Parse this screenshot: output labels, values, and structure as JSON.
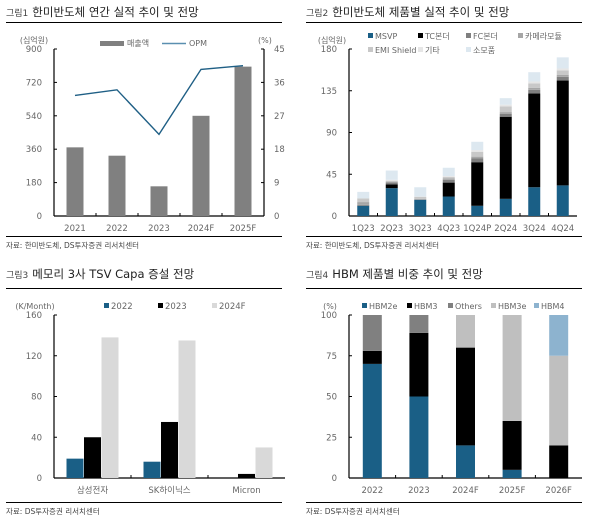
{
  "chart_data": [
    {
      "id": "fig1",
      "type": "bar+line",
      "fig_label": "그림1",
      "title": "한미반도체 연간 실적 추이 및 전망",
      "ylabel": "(십억원)",
      "y2label": "(%)",
      "categories": [
        "2021",
        "2022",
        "2023",
        "2024F",
        "2025F"
      ],
      "ylim": [
        0,
        900
      ],
      "yticks": [
        "0",
        "180",
        "360",
        "540",
        "720",
        "900"
      ],
      "y2lim": [
        0,
        45
      ],
      "y2ticks": [
        "0",
        "9",
        "18",
        "27",
        "36",
        "45"
      ],
      "series": [
        {
          "name": "매출액",
          "type": "bar",
          "axis": "left",
          "color": "#808080",
          "values": [
            370,
            325,
            160,
            540,
            805
          ]
        },
        {
          "name": "OPM",
          "type": "line",
          "axis": "right",
          "color": "#1f5f85",
          "values": [
            32.5,
            34,
            22,
            39.5,
            40.5
          ]
        }
      ],
      "legend": "top",
      "source": "자료: 한미반도체, DS투자증권 리서치센터"
    },
    {
      "id": "fig2",
      "type": "stacked-bar",
      "fig_label": "그림2",
      "title": "한미반도체 제품별 실적 추이 및 전망",
      "ylabel": "(십억원)",
      "categories": [
        "1Q23",
        "2Q23",
        "3Q23",
        "4Q23",
        "1Q24P",
        "2Q24",
        "3Q24",
        "4Q24"
      ],
      "ylim": [
        0,
        180
      ],
      "yticks": [
        "0",
        "45",
        "90",
        "135",
        "180"
      ],
      "series": [
        {
          "name": "MSVP",
          "color": "#1a5f86",
          "values": [
            11,
            30,
            17.5,
            21,
            11,
            18.5,
            31,
            33
          ]
        },
        {
          "name": "TC본더",
          "color": "#000000",
          "values": [
            0,
            4,
            0,
            15,
            47,
            88.5,
            101,
            113
          ]
        },
        {
          "name": "FC본더",
          "color": "#7f7f7f",
          "values": [
            1,
            2,
            0,
            3,
            4,
            3,
            4,
            4
          ]
        },
        {
          "name": "카메라모듈",
          "color": "#a6a6a6",
          "values": [
            3,
            1,
            1,
            1.5,
            2,
            2,
            2,
            2
          ]
        },
        {
          "name": "EMI Shield",
          "color": "#c8c8c8",
          "values": [
            4,
            1,
            2,
            1.5,
            5,
            6,
            5,
            5
          ]
        },
        {
          "name": "기타",
          "color": "#e6e6e6",
          "values": [
            0,
            1,
            0.5,
            1,
            2,
            2,
            2,
            2
          ]
        },
        {
          "name": "소모품",
          "color": "#dde8f0",
          "values": [
            7,
            10,
            10,
            9,
            9,
            7,
            10,
            12
          ]
        }
      ],
      "legend": "top",
      "source": "자료: 한미반도체, DS투자증권 리서치센터"
    },
    {
      "id": "fig3",
      "type": "bar",
      "fig_label": "그림3",
      "title": "메모리 3사 TSV Capa 증설 전망",
      "ylabel": "(K/Month)",
      "categories": [
        "삼성전자",
        "SK하이닉스",
        "Micron"
      ],
      "ylim": [
        0,
        160
      ],
      "yticks": [
        "0",
        "40",
        "80",
        "120",
        "160"
      ],
      "series": [
        {
          "name": "2022",
          "color": "#1a5f86",
          "values": [
            19,
            16,
            0
          ]
        },
        {
          "name": "2023",
          "color": "#000000",
          "values": [
            40,
            55,
            4
          ]
        },
        {
          "name": "2024F",
          "color": "#d9d9d9",
          "values": [
            138,
            135,
            30
          ]
        }
      ],
      "legend": "top",
      "source": "자료: DS투자증권 리서치센터"
    },
    {
      "id": "fig4",
      "type": "stacked-bar",
      "fig_label": "그림4",
      "title": "HBM 제품별 비중 추이 및 전망",
      "ylabel": "(%)",
      "categories": [
        "2022",
        "2023",
        "2024F",
        "2025F",
        "2026F"
      ],
      "ylim": [
        0,
        100
      ],
      "yticks": [
        "0",
        "25",
        "50",
        "75",
        "100"
      ],
      "series": [
        {
          "name": "HBM2e",
          "color": "#1a5f86",
          "values": [
            70,
            50,
            20,
            5,
            0
          ]
        },
        {
          "name": "HBM3",
          "color": "#000000",
          "values": [
            8,
            39,
            60,
            30,
            20
          ]
        },
        {
          "name": "Others",
          "color": "#808080",
          "values": [
            22,
            11,
            0,
            0,
            0
          ]
        },
        {
          "name": "HBM3e",
          "color": "#bfbfbf",
          "values": [
            0,
            0,
            20,
            65,
            55
          ]
        },
        {
          "name": "HBM4",
          "color": "#8db3cf",
          "values": [
            0,
            0,
            0,
            0,
            25
          ]
        }
      ],
      "legend": "top",
      "source": "자료: DS투자증권 리서치센터"
    }
  ]
}
